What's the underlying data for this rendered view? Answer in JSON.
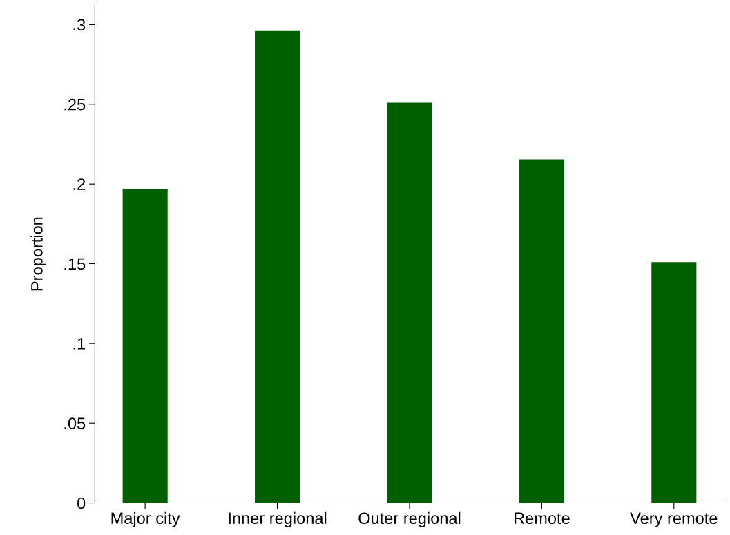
{
  "chart_data": {
    "type": "bar",
    "ylabel": "Proportion",
    "categories": [
      "Major city",
      "Inner regional",
      "Outer regional",
      "Remote",
      "Very remote"
    ],
    "values": [
      0.197,
      0.296,
      0.251,
      0.2155,
      0.151
    ],
    "color": "#006000",
    "ylim": [
      0,
      0.312
    ],
    "yticks": [
      {
        "value": 0,
        "label": "0"
      },
      {
        "value": 0.05,
        "label": ".05"
      },
      {
        "value": 0.1,
        "label": ".1"
      },
      {
        "value": 0.15,
        "label": ".15"
      },
      {
        "value": 0.2,
        "label": ".2"
      },
      {
        "value": 0.25,
        "label": ".25"
      },
      {
        "value": 0.3,
        "label": ".3"
      }
    ],
    "grid": false,
    "legend": false
  }
}
